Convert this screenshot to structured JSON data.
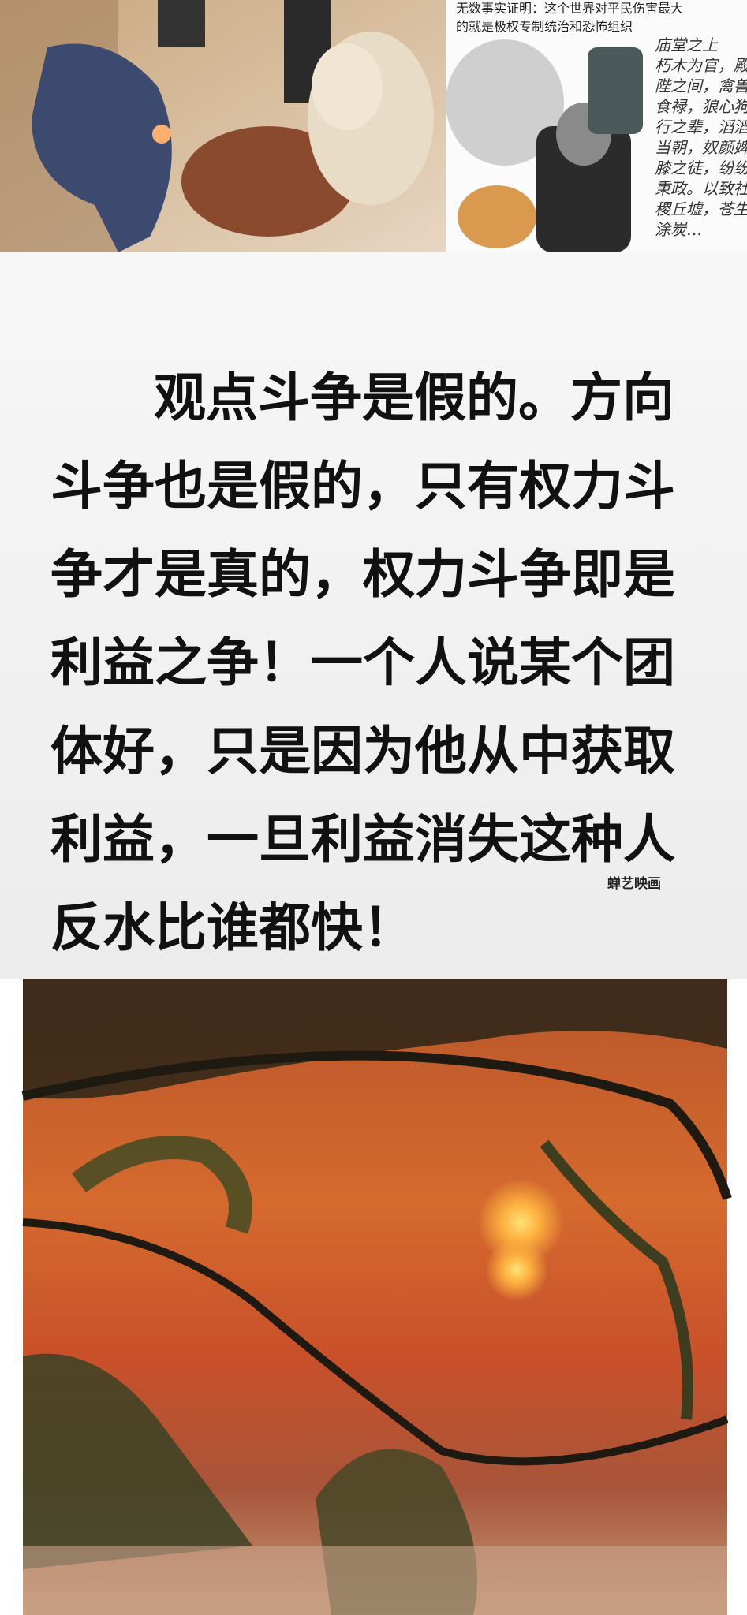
{
  "header_caption": [
    "无数事实证明：这个世界对平民伤害最大",
    "的就是极权专制统治和恐怖组织"
  ],
  "handwriting": [
    "庙堂之上",
    "朽木为官，殿",
    "陛之间，禽兽",
    "食禄，狼心狗",
    "行之辈，滔滔",
    "当朝，奴颜婢",
    "膝之徒，纷纷",
    "秉政。以致社",
    "稷丘墟，苍生",
    "涂炭…"
  ],
  "main_text": [
    "观点斗争是假的。方向",
    "斗争也是假的，只有权力斗",
    "争才是真的，权力斗争即是",
    "利益之争！一个人说某个团",
    "体好，只是因为他从中获取",
    "利益，一旦利益消失这种人",
    "反水比谁都快！"
  ],
  "watermark": "蝉艺映画"
}
